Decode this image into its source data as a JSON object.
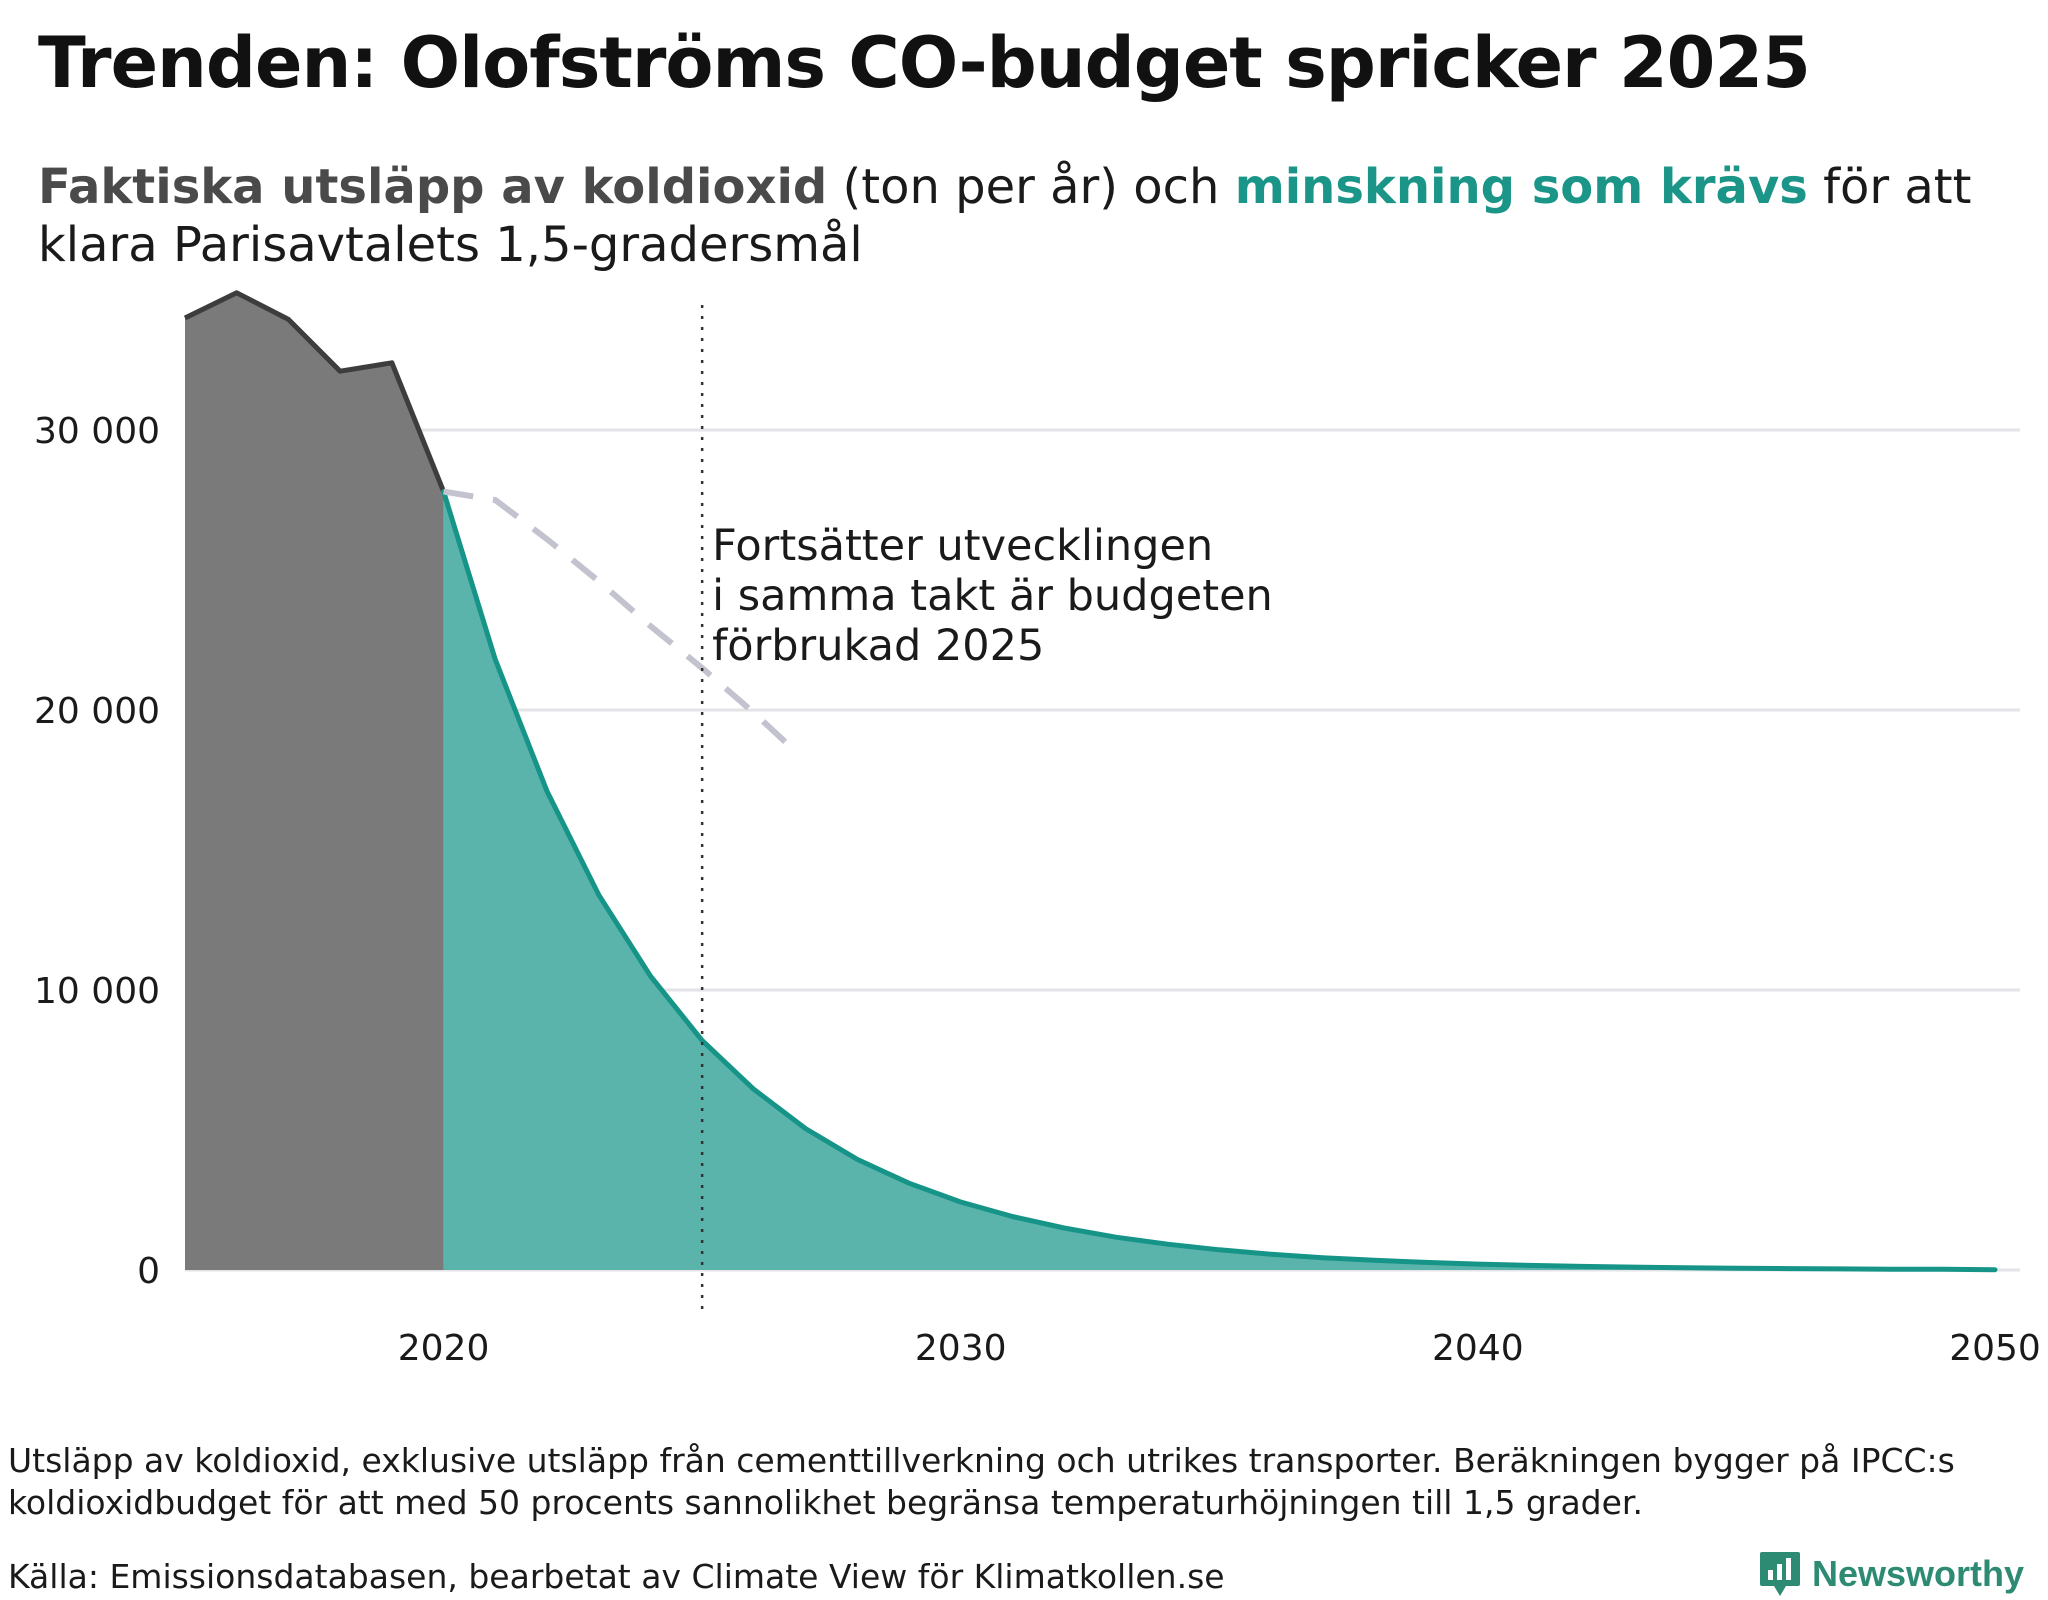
{
  "title": "Trenden: Olofströms CO-budget spricker 2025",
  "subtitle": {
    "actual": "Faktiska utsläpp av koldioxid",
    "unit_and": " (ton per år) och ",
    "required": "minskning som krävs",
    "rest": " för att klara Parisavtalets 1,5-gradersmål"
  },
  "annotation": {
    "lines": [
      "Fortsätter utvecklingen",
      "i samma takt är budgeten",
      "förbrukad 2025"
    ]
  },
  "footnote": "Utsläpp av koldioxid, exklusive utsläpp från cementtillverkning och utrikes transporter. Beräkningen bygger på IPCC:s koldioxidbudget för att med 50 procents sannolikhet begränsa temperaturhöjningen till 1,5 grader.",
  "source": "Källa: Emissionsdatabasen, bearbetat av Climate View för Klimatkollen.se",
  "brand": {
    "name": "Newsworthy"
  },
  "colors": {
    "actual_fill": "#7a7a7a",
    "actual_line": "#3d3d3d",
    "required_fill": "#5bb4ab",
    "required_line": "#169488",
    "trend_line": "#c3c3cf",
    "grid": "#e3e3e8",
    "marker_line": "#333333",
    "brand": "#2e8b73"
  },
  "chart_data": {
    "type": "area",
    "xlim": [
      2015,
      2050
    ],
    "ylim": [
      0,
      35000
    ],
    "x_ticks": [
      2020,
      2030,
      2040,
      2050
    ],
    "y_ticks": [
      0,
      10000,
      20000,
      30000
    ],
    "y_tick_labels": [
      "0",
      "10 000",
      "20 000",
      "30 000"
    ],
    "grid": "horizontal",
    "marker_year": 2025,
    "series": [
      {
        "name": "Faktiska utsläpp av koldioxid",
        "kind": "area",
        "x": [
          2015,
          2016,
          2017,
          2018,
          2019,
          2020
        ],
        "y": [
          34000,
          34900,
          33950,
          32100,
          32400,
          27800
        ]
      },
      {
        "name": "minskning som krävs",
        "kind": "area",
        "x": [
          2020,
          2021,
          2022,
          2023,
          2024,
          2025,
          2026,
          2027,
          2028,
          2029,
          2030,
          2031,
          2032,
          2033,
          2034,
          2035,
          2036,
          2037,
          2038,
          2039,
          2040,
          2041,
          2042,
          2043,
          2044,
          2045,
          2046,
          2047,
          2048,
          2049,
          2050
        ],
        "y": [
          27800,
          21800,
          17100,
          13400,
          10500,
          8200,
          6450,
          5050,
          3950,
          3100,
          2430,
          1910,
          1500,
          1170,
          920,
          720,
          565,
          440,
          345,
          270,
          212,
          166,
          130,
          102,
          80,
          63,
          49,
          38,
          30,
          24,
          10
        ]
      },
      {
        "name": "trend",
        "kind": "dashed-line",
        "x": [
          2020,
          2021,
          2022,
          2023,
          2024,
          2025,
          2026,
          2026.7
        ],
        "y": [
          27800,
          27500,
          26100,
          24600,
          23000,
          21500,
          19900,
          18700
        ]
      }
    ]
  }
}
